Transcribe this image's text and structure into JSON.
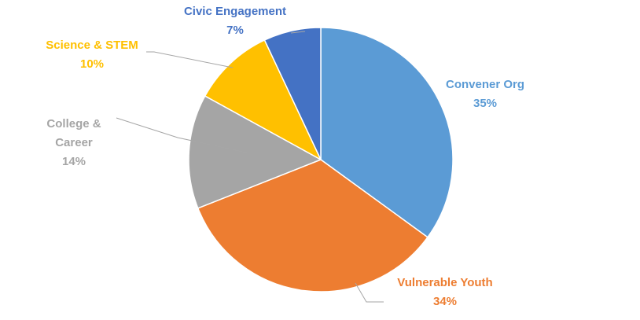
{
  "chart_data": {
    "type": "pie",
    "slices": [
      {
        "label": "Convener Org",
        "value": 35,
        "value_label": "35%",
        "color": "#5B9BD5"
      },
      {
        "label": "Vulnerable Youth",
        "value": 34,
        "value_label": "34%",
        "color": "#ED7D31"
      },
      {
        "label": "College & Career",
        "label_lines": [
          "College &",
          "Career"
        ],
        "value": 14,
        "value_label": "14%",
        "color": "#A5A5A5"
      },
      {
        "label": "Science & STEM",
        "value": 10,
        "value_label": "10%",
        "color": "#FFC000"
      },
      {
        "label": "Civic Engagement",
        "value": 7,
        "value_label": "7%",
        "color": "#4472C4"
      }
    ],
    "start": "12 o'clock, clockwise",
    "legend": "none",
    "data_labels": "category name and percentage, outside with leader lines"
  }
}
